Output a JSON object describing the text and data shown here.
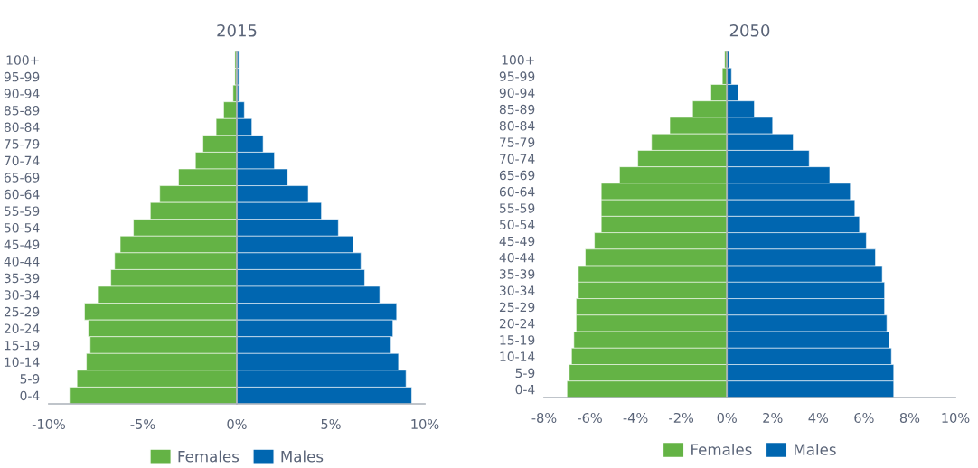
{
  "chart_data": [
    {
      "type": "bar",
      "title": "2015",
      "orientation": "horizontal",
      "stacked": true,
      "legend": "bottom",
      "categories": [
        "100+",
        "95-99",
        "90-94",
        "85-89",
        "80-84",
        "75-79",
        "70-74",
        "65-69",
        "60-64",
        "55-59",
        "50-54",
        "45-49",
        "40-44",
        "35-39",
        "30-34",
        "25-29",
        "20-24",
        "15-19",
        "10-14",
        "5-9",
        "0-4"
      ],
      "series": [
        {
          "name": "Females",
          "color": "#64b345",
          "values": [
            -0.1,
            -0.1,
            -0.2,
            -0.7,
            -1.1,
            -1.8,
            -2.2,
            -3.1,
            -4.1,
            -4.6,
            -5.5,
            -6.2,
            -6.5,
            -6.7,
            -7.4,
            -8.1,
            -7.9,
            -7.8,
            -8.0,
            -8.5,
            -8.9
          ]
        },
        {
          "name": "Males",
          "color": "#0066b0",
          "values": [
            0.1,
            0.1,
            0.1,
            0.4,
            0.8,
            1.4,
            2.0,
            2.7,
            3.8,
            4.5,
            5.4,
            6.2,
            6.6,
            6.8,
            7.6,
            8.5,
            8.3,
            8.2,
            8.6,
            9.0,
            9.3
          ]
        }
      ],
      "xlim": [
        -10,
        10
      ],
      "xticks": [
        {
          "value": -10,
          "label": "-10%"
        },
        {
          "value": -5,
          "label": "-5%"
        },
        {
          "value": 0,
          "label": "0%"
        },
        {
          "value": 5,
          "label": "5%"
        },
        {
          "value": 10,
          "label": "10%"
        }
      ]
    },
    {
      "type": "bar",
      "title": "2050",
      "orientation": "horizontal",
      "stacked": true,
      "legend": "bottom",
      "categories": [
        "100+",
        "95-99",
        "90-94",
        "85-89",
        "80-84",
        "75-79",
        "70-74",
        "65-69",
        "60-64",
        "55-59",
        "50-54",
        "45-49",
        "40-44",
        "35-39",
        "30-34",
        "25-29",
        "20-24",
        "15-19",
        "10-14",
        "5-9",
        "0-4"
      ],
      "series": [
        {
          "name": "Females",
          "color": "#64b345",
          "values": [
            -0.1,
            -0.2,
            -0.7,
            -1.5,
            -2.5,
            -3.3,
            -3.9,
            -4.7,
            -5.5,
            -5.5,
            -5.5,
            -5.8,
            -6.2,
            -6.5,
            -6.5,
            -6.6,
            -6.6,
            -6.7,
            -6.8,
            -6.9,
            -7.0
          ]
        },
        {
          "name": "Males",
          "color": "#0066b0",
          "values": [
            0.1,
            0.2,
            0.5,
            1.2,
            2.0,
            2.9,
            3.6,
            4.5,
            5.4,
            5.6,
            5.8,
            6.1,
            6.5,
            6.8,
            6.9,
            6.9,
            7.0,
            7.1,
            7.2,
            7.3,
            7.3
          ]
        }
      ],
      "xlim": [
        -8,
        10
      ],
      "xticks": [
        {
          "value": -8,
          "label": "-8%"
        },
        {
          "value": -6,
          "label": "-6%"
        },
        {
          "value": -4,
          "label": "-4%"
        },
        {
          "value": -2,
          "label": "-2%"
        },
        {
          "value": 0,
          "label": "0%"
        },
        {
          "value": 2,
          "label": "2%"
        },
        {
          "value": 4,
          "label": "4%"
        },
        {
          "value": 6,
          "label": "6%"
        },
        {
          "value": 8,
          "label": "8%"
        },
        {
          "value": 10,
          "label": "10%"
        }
      ]
    }
  ]
}
